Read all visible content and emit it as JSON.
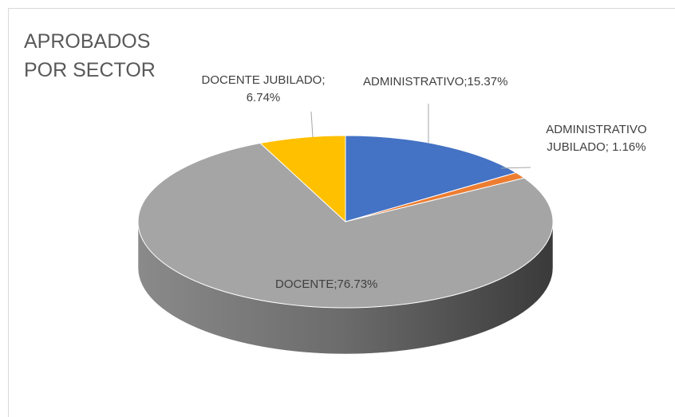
{
  "chart_data": {
    "type": "pie3d",
    "title": "APROBADOS POR SECTOR",
    "values": [
      15.37,
      1.16,
      76.73,
      6.74
    ],
    "value_labels": [
      "ADMINISTRATIVO;15.37%",
      "ADMINISTRATIVO JUBILADO; 1.16%",
      "DOCENTE;76.73%",
      "DOCENTE JUBILADO; 6.74%"
    ],
    "colors": [
      "#4472c4",
      "#ed7d31",
      "#a5a5a5",
      "#ffc000"
    ]
  }
}
